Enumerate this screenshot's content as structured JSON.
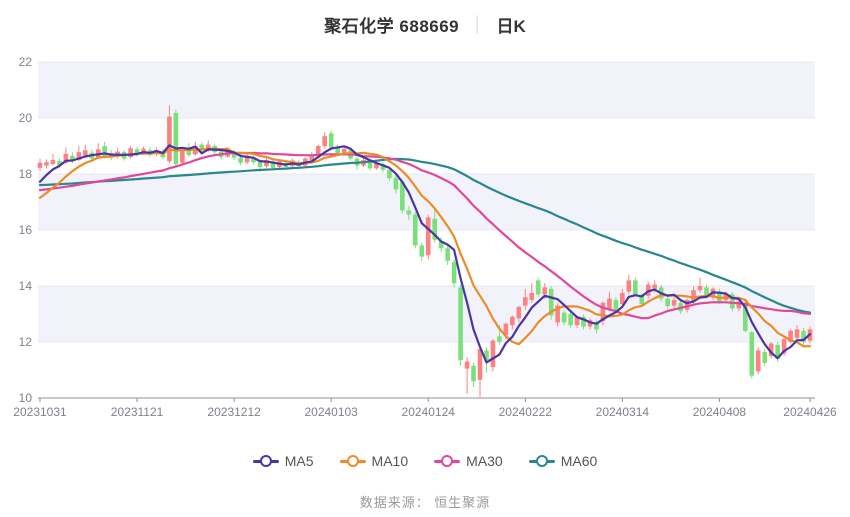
{
  "title": {
    "symbol": "聚石化学 688669",
    "separator": "│",
    "period": "日K"
  },
  "footer": {
    "source_label": "数据来源： 恒生聚源"
  },
  "legend": [
    {
      "label": "MA5",
      "color": "#4a35a2"
    },
    {
      "label": "MA10",
      "color": "#ec8b28"
    },
    {
      "label": "MA30",
      "color": "#e0489c"
    },
    {
      "label": "MA60",
      "color": "#29878d"
    }
  ],
  "colors": {
    "up": "#fa8282",
    "down": "#7ae07a",
    "band": "#f2f3fa",
    "grid": "#e5e8f2",
    "axis": "#8c9096",
    "tick_text": "#7d828c"
  },
  "chart_data": {
    "type": "candlestick",
    "title": "聚石化学 688669 日K",
    "ylabel": "",
    "xlabel": "",
    "ylim": [
      10,
      22
    ],
    "yticks": [
      10,
      12,
      14,
      16,
      18,
      20,
      22
    ],
    "grid": "horizontal-bands",
    "legend_position": "bottom",
    "xtick_indices": [
      0,
      15,
      30,
      45,
      60,
      75,
      90,
      105,
      119
    ],
    "xtick_labels": [
      "20231031",
      "20231121",
      "20231212",
      "20240103",
      "20240124",
      "20240222",
      "20240314",
      "20240408",
      "20240426"
    ],
    "ma_series": [
      {
        "name": "MA5",
        "window": 5,
        "color": "#4a35a2"
      },
      {
        "name": "MA10",
        "window": 10,
        "color": "#ec8b28"
      },
      {
        "name": "MA30",
        "window": 30,
        "color": "#e0489c"
      },
      {
        "name": "MA60",
        "window": 60,
        "color": "#29878d"
      }
    ],
    "prehistory_closes": [
      17.75,
      17.8,
      17.78,
      17.82,
      17.76,
      17.8,
      17.74,
      17.78,
      17.82,
      17.8,
      17.76,
      17.74,
      17.8,
      17.84,
      17.78,
      17.76,
      17.8,
      17.78,
      17.74,
      17.82,
      17.8,
      17.76,
      17.78,
      17.82,
      17.76,
      17.8,
      17.78,
      17.74,
      17.8,
      17.82,
      17.6,
      17.55,
      17.5,
      17.62,
      17.58,
      17.52,
      17.56,
      17.6,
      17.54,
      17.58,
      17.52,
      17.56,
      17.62,
      17.5,
      17.55,
      17.6,
      17.54,
      17.58,
      17.56,
      17.52,
      16.7,
      16.6,
      16.5,
      16.55,
      16.55,
      17.2,
      17.5,
      17.7,
      17.8
    ],
    "candles": [
      {
        "d": "20231031",
        "o": 18.22,
        "h": 18.55,
        "l": 18.1,
        "c": 18.4
      },
      {
        "d": "20231101",
        "o": 18.3,
        "h": 18.52,
        "l": 18.2,
        "c": 18.42
      },
      {
        "d": "20231102",
        "o": 18.36,
        "h": 18.72,
        "l": 18.3,
        "c": 18.5
      },
      {
        "d": "20231103",
        "o": 18.46,
        "h": 18.55,
        "l": 18.22,
        "c": 18.32
      },
      {
        "d": "20231106",
        "o": 18.4,
        "h": 18.95,
        "l": 18.35,
        "c": 18.72
      },
      {
        "d": "20231107",
        "o": 18.65,
        "h": 18.78,
        "l": 18.38,
        "c": 18.45
      },
      {
        "d": "20231108",
        "o": 18.5,
        "h": 19.0,
        "l": 18.45,
        "c": 18.78
      },
      {
        "d": "20231109",
        "o": 18.66,
        "h": 19.05,
        "l": 18.6,
        "c": 18.85
      },
      {
        "d": "20231110",
        "o": 18.76,
        "h": 18.88,
        "l": 18.48,
        "c": 18.55
      },
      {
        "d": "20231113",
        "o": 18.6,
        "h": 19.1,
        "l": 18.55,
        "c": 18.88
      },
      {
        "d": "20231114",
        "o": 19.0,
        "h": 19.15,
        "l": 18.55,
        "c": 18.62
      },
      {
        "d": "20231115",
        "o": 18.74,
        "h": 18.85,
        "l": 18.5,
        "c": 18.58
      },
      {
        "d": "20231116",
        "o": 18.62,
        "h": 18.92,
        "l": 18.55,
        "c": 18.8
      },
      {
        "d": "20231117",
        "o": 18.78,
        "h": 18.85,
        "l": 18.48,
        "c": 18.55
      },
      {
        "d": "20231120",
        "o": 18.6,
        "h": 19.0,
        "l": 18.55,
        "c": 18.92
      },
      {
        "d": "20231121",
        "o": 18.88,
        "h": 18.98,
        "l": 18.62,
        "c": 18.72
      },
      {
        "d": "20231122",
        "o": 18.75,
        "h": 18.98,
        "l": 18.68,
        "c": 18.9
      },
      {
        "d": "20231123",
        "o": 18.85,
        "h": 18.95,
        "l": 18.62,
        "c": 18.7
      },
      {
        "d": "20231124",
        "o": 18.72,
        "h": 18.95,
        "l": 18.65,
        "c": 18.85
      },
      {
        "d": "20231127",
        "o": 18.8,
        "h": 18.88,
        "l": 18.52,
        "c": 18.6
      },
      {
        "d": "20231128",
        "o": 18.45,
        "h": 20.46,
        "l": 18.38,
        "c": 20.05
      },
      {
        "d": "20231129",
        "o": 20.18,
        "h": 20.3,
        "l": 18.25,
        "c": 18.35
      },
      {
        "d": "20231130",
        "o": 18.4,
        "h": 18.95,
        "l": 18.3,
        "c": 18.82
      },
      {
        "d": "20231201",
        "o": 18.85,
        "h": 19.1,
        "l": 18.6,
        "c": 18.68
      },
      {
        "d": "20231204",
        "o": 18.7,
        "h": 19.15,
        "l": 18.65,
        "c": 19.0
      },
      {
        "d": "20231205",
        "o": 19.05,
        "h": 19.12,
        "l": 18.75,
        "c": 18.85
      },
      {
        "d": "20231206",
        "o": 18.85,
        "h": 19.2,
        "l": 18.8,
        "c": 19.05
      },
      {
        "d": "20231207",
        "o": 19.0,
        "h": 19.08,
        "l": 18.7,
        "c": 18.78
      },
      {
        "d": "20231208",
        "o": 18.8,
        "h": 18.9,
        "l": 18.52,
        "c": 18.6
      },
      {
        "d": "20231211",
        "o": 18.62,
        "h": 18.95,
        "l": 18.58,
        "c": 18.85
      },
      {
        "d": "20231212",
        "o": 18.8,
        "h": 18.88,
        "l": 18.5,
        "c": 18.58
      },
      {
        "d": "20231213",
        "o": 18.58,
        "h": 18.7,
        "l": 18.32,
        "c": 18.4
      },
      {
        "d": "20231214",
        "o": 18.42,
        "h": 18.72,
        "l": 18.35,
        "c": 18.65
      },
      {
        "d": "20231215",
        "o": 18.6,
        "h": 18.68,
        "l": 18.35,
        "c": 18.42
      },
      {
        "d": "20231218",
        "o": 18.45,
        "h": 18.5,
        "l": 18.08,
        "c": 18.25
      },
      {
        "d": "20231219",
        "o": 18.28,
        "h": 18.58,
        "l": 18.22,
        "c": 18.5
      },
      {
        "d": "20231220",
        "o": 18.45,
        "h": 18.52,
        "l": 18.12,
        "c": 18.22
      },
      {
        "d": "20231221",
        "o": 18.25,
        "h": 18.52,
        "l": 18.18,
        "c": 18.45
      },
      {
        "d": "20231222",
        "o": 18.4,
        "h": 18.48,
        "l": 18.18,
        "c": 18.25
      },
      {
        "d": "20231225",
        "o": 18.28,
        "h": 18.55,
        "l": 18.22,
        "c": 18.48
      },
      {
        "d": "20231226",
        "o": 18.42,
        "h": 18.5,
        "l": 18.2,
        "c": 18.28
      },
      {
        "d": "20231227",
        "o": 18.3,
        "h": 18.6,
        "l": 18.25,
        "c": 18.55
      },
      {
        "d": "20231228",
        "o": 18.5,
        "h": 18.78,
        "l": 18.45,
        "c": 18.7
      },
      {
        "d": "20231229",
        "o": 18.65,
        "h": 19.05,
        "l": 18.6,
        "c": 19.0
      },
      {
        "d": "20240102",
        "o": 19.0,
        "h": 19.5,
        "l": 18.9,
        "c": 19.35
      },
      {
        "d": "20240103",
        "o": 19.45,
        "h": 19.55,
        "l": 18.85,
        "c": 18.95
      },
      {
        "d": "20240104",
        "o": 18.95,
        "h": 19.05,
        "l": 18.65,
        "c": 18.75
      },
      {
        "d": "20240105",
        "o": 18.75,
        "h": 19.0,
        "l": 18.68,
        "c": 18.9
      },
      {
        "d": "20240108",
        "o": 18.85,
        "h": 18.92,
        "l": 18.48,
        "c": 18.55
      },
      {
        "d": "20240109",
        "o": 18.55,
        "h": 18.62,
        "l": 18.15,
        "c": 18.3
      },
      {
        "d": "20240110",
        "o": 18.3,
        "h": 18.58,
        "l": 18.25,
        "c": 18.5
      },
      {
        "d": "20240111",
        "o": 18.45,
        "h": 18.52,
        "l": 18.12,
        "c": 18.2
      },
      {
        "d": "20240112",
        "o": 18.2,
        "h": 18.48,
        "l": 18.15,
        "c": 18.4
      },
      {
        "d": "20240115",
        "o": 18.35,
        "h": 18.42,
        "l": 18.05,
        "c": 18.15
      },
      {
        "d": "20240116",
        "o": 18.15,
        "h": 18.22,
        "l": 17.75,
        "c": 17.85
      },
      {
        "d": "20240117",
        "o": 17.85,
        "h": 17.95,
        "l": 17.3,
        "c": 17.45
      },
      {
        "d": "20240118",
        "o": 17.72,
        "h": 17.8,
        "l": 16.6,
        "c": 16.7
      },
      {
        "d": "20240119",
        "o": 16.7,
        "h": 16.85,
        "l": 16.35,
        "c": 16.55
      },
      {
        "d": "20240122",
        "o": 16.55,
        "h": 16.65,
        "l": 15.35,
        "c": 15.45
      },
      {
        "d": "20240123",
        "o": 15.45,
        "h": 15.55,
        "l": 14.9,
        "c": 15.05
      },
      {
        "d": "20240124",
        "o": 15.1,
        "h": 16.55,
        "l": 14.95,
        "c": 16.45
      },
      {
        "d": "20240125",
        "o": 16.4,
        "h": 16.7,
        "l": 15.55,
        "c": 15.65
      },
      {
        "d": "20240126",
        "o": 15.6,
        "h": 15.75,
        "l": 15.2,
        "c": 15.35
      },
      {
        "d": "20240129",
        "o": 15.35,
        "h": 15.45,
        "l": 14.75,
        "c": 14.9
      },
      {
        "d": "20240130",
        "o": 14.85,
        "h": 14.95,
        "l": 13.95,
        "c": 14.1
      },
      {
        "d": "20240131",
        "o": 13.95,
        "h": 14.05,
        "l": 11.15,
        "c": 11.35
      },
      {
        "d": "20240201",
        "o": 11.05,
        "h": 11.45,
        "l": 10.15,
        "c": 11.3
      },
      {
        "d": "20240202",
        "o": 11.15,
        "h": 11.25,
        "l": 10.4,
        "c": 10.6
      },
      {
        "d": "20240205",
        "o": 10.65,
        "h": 11.9,
        "l": 10.05,
        "c": 11.75
      },
      {
        "d": "20240206",
        "o": 11.7,
        "h": 11.8,
        "l": 10.9,
        "c": 11.35
      },
      {
        "d": "20240207",
        "o": 11.1,
        "h": 12.1,
        "l": 10.95,
        "c": 12.05
      },
      {
        "d": "20240208",
        "o": 12.2,
        "h": 12.6,
        "l": 11.9,
        "c": 12.0
      },
      {
        "d": "20240219",
        "o": 12.25,
        "h": 12.7,
        "l": 12.1,
        "c": 12.65
      },
      {
        "d": "20240220",
        "o": 12.6,
        "h": 12.95,
        "l": 12.45,
        "c": 12.9
      },
      {
        "d": "20240221",
        "o": 12.85,
        "h": 13.3,
        "l": 12.7,
        "c": 13.25
      },
      {
        "d": "20240222",
        "o": 13.3,
        "h": 13.9,
        "l": 13.15,
        "c": 13.6
      },
      {
        "d": "20240223",
        "o": 13.5,
        "h": 14.1,
        "l": 13.4,
        "c": 13.75
      },
      {
        "d": "20240226",
        "o": 14.2,
        "h": 14.3,
        "l": 13.6,
        "c": 13.7
      },
      {
        "d": "20240227",
        "o": 13.7,
        "h": 14.1,
        "l": 13.55,
        "c": 13.95
      },
      {
        "d": "20240228",
        "o": 13.9,
        "h": 14.0,
        "l": 12.8,
        "c": 12.95
      },
      {
        "d": "20240229",
        "o": 12.7,
        "h": 13.4,
        "l": 12.55,
        "c": 13.3
      },
      {
        "d": "20240301",
        "o": 13.05,
        "h": 13.15,
        "l": 12.6,
        "c": 12.7
      },
      {
        "d": "20240304",
        "o": 13.0,
        "h": 13.1,
        "l": 12.5,
        "c": 12.6
      },
      {
        "d": "20240305",
        "o": 12.6,
        "h": 12.95,
        "l": 12.5,
        "c": 12.88
      },
      {
        "d": "20240306",
        "o": 12.9,
        "h": 12.98,
        "l": 12.45,
        "c": 12.55
      },
      {
        "d": "20240307",
        "o": 12.55,
        "h": 12.85,
        "l": 12.45,
        "c": 12.78
      },
      {
        "d": "20240308",
        "o": 12.7,
        "h": 12.8,
        "l": 12.3,
        "c": 12.45
      },
      {
        "d": "20240311",
        "o": 12.75,
        "h": 13.45,
        "l": 12.6,
        "c": 13.4
      },
      {
        "d": "20240312",
        "o": 13.15,
        "h": 13.8,
        "l": 13.1,
        "c": 13.55
      },
      {
        "d": "20240313",
        "o": 13.5,
        "h": 13.6,
        "l": 13.05,
        "c": 13.15
      },
      {
        "d": "20240314",
        "o": 13.35,
        "h": 13.9,
        "l": 13.25,
        "c": 13.75
      },
      {
        "d": "20240315",
        "o": 13.8,
        "h": 14.4,
        "l": 13.7,
        "c": 14.2
      },
      {
        "d": "20240318",
        "o": 14.2,
        "h": 14.3,
        "l": 13.65,
        "c": 13.7
      },
      {
        "d": "20240319",
        "o": 13.65,
        "h": 13.75,
        "l": 13.25,
        "c": 13.35
      },
      {
        "d": "20240320",
        "o": 13.65,
        "h": 14.15,
        "l": 13.55,
        "c": 14.05
      },
      {
        "d": "20240321",
        "o": 13.9,
        "h": 14.2,
        "l": 13.75,
        "c": 14.05
      },
      {
        "d": "20240322",
        "o": 13.95,
        "h": 14.05,
        "l": 13.45,
        "c": 13.55
      },
      {
        "d": "20240325",
        "o": 13.55,
        "h": 13.65,
        "l": 13.2,
        "c": 13.28
      },
      {
        "d": "20240326",
        "o": 13.3,
        "h": 13.6,
        "l": 13.15,
        "c": 13.5
      },
      {
        "d": "20240327",
        "o": 13.4,
        "h": 13.5,
        "l": 13.0,
        "c": 13.1
      },
      {
        "d": "20240328",
        "o": 13.15,
        "h": 13.55,
        "l": 13.05,
        "c": 13.5
      },
      {
        "d": "20240329",
        "o": 13.45,
        "h": 14.0,
        "l": 13.35,
        "c": 13.85
      },
      {
        "d": "20240401",
        "o": 13.85,
        "h": 14.3,
        "l": 13.75,
        "c": 14.0
      },
      {
        "d": "20240402",
        "o": 13.95,
        "h": 14.05,
        "l": 13.55,
        "c": 13.6
      },
      {
        "d": "20240403",
        "o": 13.6,
        "h": 13.95,
        "l": 13.5,
        "c": 13.9
      },
      {
        "d": "20240408",
        "o": 13.8,
        "h": 13.9,
        "l": 13.35,
        "c": 13.45
      },
      {
        "d": "20240409",
        "o": 13.5,
        "h": 13.8,
        "l": 13.4,
        "c": 13.7
      },
      {
        "d": "20240410",
        "o": 13.7,
        "h": 13.78,
        "l": 13.1,
        "c": 13.2
      },
      {
        "d": "20240411",
        "o": 13.2,
        "h": 13.5,
        "l": 13.1,
        "c": 13.45
      },
      {
        "d": "20240412",
        "o": 13.4,
        "h": 13.48,
        "l": 12.35,
        "c": 12.4
      },
      {
        "d": "20240415",
        "o": 12.35,
        "h": 12.4,
        "l": 10.7,
        "c": 10.8
      },
      {
        "d": "20240416",
        "o": 10.95,
        "h": 11.8,
        "l": 10.85,
        "c": 11.7
      },
      {
        "d": "20240417",
        "o": 11.65,
        "h": 11.75,
        "l": 11.15,
        "c": 11.25
      },
      {
        "d": "20240418",
        "o": 11.5,
        "h": 12.0,
        "l": 11.4,
        "c": 11.95
      },
      {
        "d": "20240419",
        "o": 11.9,
        "h": 12.0,
        "l": 11.3,
        "c": 11.4
      },
      {
        "d": "20240422",
        "o": 11.6,
        "h": 12.15,
        "l": 11.5,
        "c": 12.1
      },
      {
        "d": "20240423",
        "o": 12.0,
        "h": 12.45,
        "l": 11.95,
        "c": 12.4
      },
      {
        "d": "20240424",
        "o": 12.15,
        "h": 12.6,
        "l": 12.05,
        "c": 12.45
      },
      {
        "d": "20240425",
        "o": 12.4,
        "h": 12.5,
        "l": 11.9,
        "c": 12.0
      },
      {
        "d": "20240426",
        "o": 12.05,
        "h": 12.55,
        "l": 11.95,
        "c": 12.45
      }
    ]
  }
}
